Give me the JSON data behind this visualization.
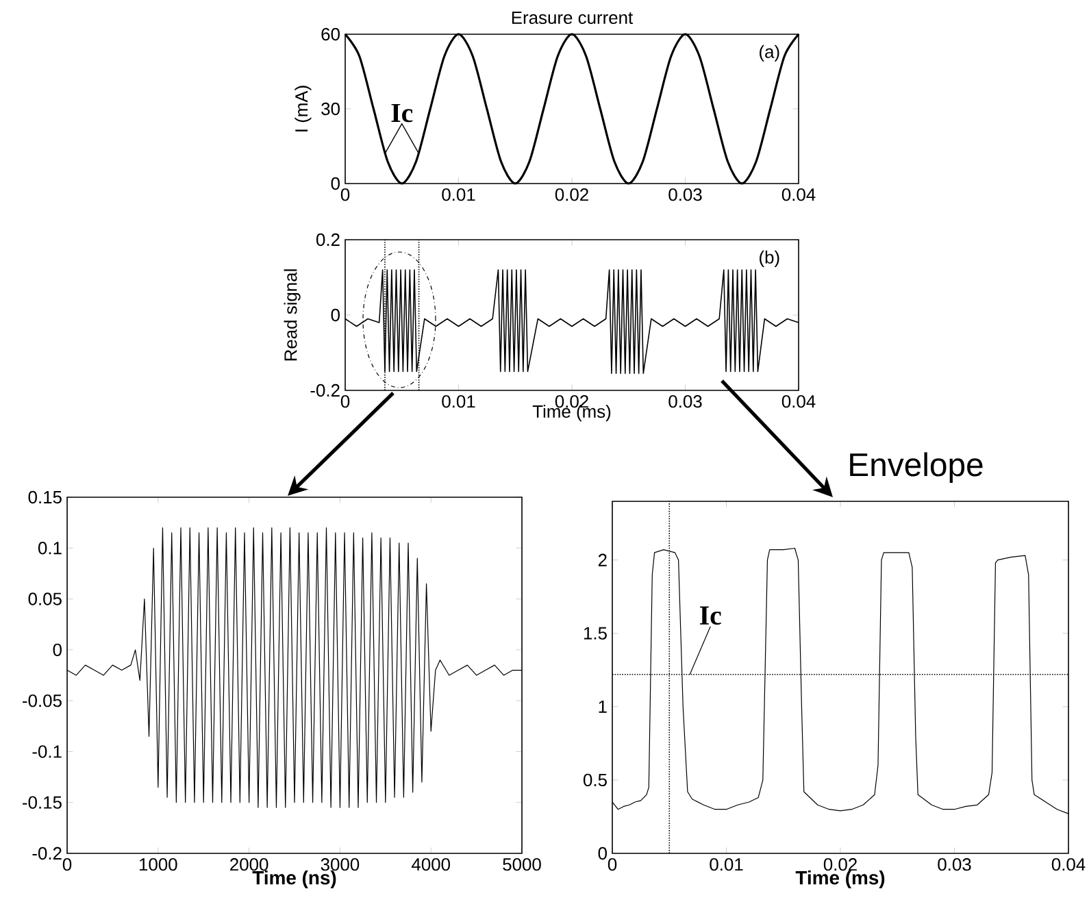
{
  "chart_data": [
    {
      "type": "line",
      "title": "Erasure current",
      "ylabel": "I (mA)",
      "xlim": [
        0,
        0.04
      ],
      "ylim": [
        0,
        60
      ],
      "xticks": [
        0,
        0.01,
        0.02,
        0.03,
        0.04
      ],
      "yticks": [
        0,
        30,
        60
      ],
      "annotations": [
        "Ic",
        "(a)"
      ],
      "x": [
        0,
        0.00125,
        0.0025,
        0.00375,
        0.005,
        0.00625,
        0.0075,
        0.00875,
        0.01,
        0.01125,
        0.0125,
        0.01375,
        0.015,
        0.01625,
        0.0175,
        0.01875,
        0.02,
        0.02125,
        0.0225,
        0.02375,
        0.025,
        0.02625,
        0.0275,
        0.02875,
        0.03,
        0.03125,
        0.0325,
        0.03375,
        0.035,
        0.03625,
        0.0375,
        0.03875,
        0.04
      ],
      "series": [
        {
          "color": "#000000",
          "values": [
            60,
            51.2,
            30,
            8.8,
            0,
            8.8,
            30,
            51.2,
            60,
            51.2,
            30,
            8.8,
            0,
            8.8,
            30,
            51.2,
            60,
            51.2,
            30,
            8.8,
            0,
            8.8,
            30,
            51.2,
            60,
            51.2,
            30,
            8.8,
            0,
            8.8,
            30,
            51.2,
            60
          ]
        }
      ]
    },
    {
      "type": "line",
      "xlabel": "Time (ms)",
      "ylabel": "Read signal",
      "xlim": [
        0,
        0.04
      ],
      "ylim": [
        -0.2,
        0.2
      ],
      "xticks": [
        0,
        0.01,
        0.02,
        0.03,
        0.04
      ],
      "yticks": [
        -0.2,
        0,
        0.2
      ],
      "annotations": [
        "(b)"
      ],
      "ref_lines": [
        {
          "axis": "x",
          "value": 0.0035,
          "line_style": "dotted"
        },
        {
          "axis": "x",
          "value": 0.0065,
          "line_style": "dotted"
        }
      ],
      "x": [
        0,
        0.001,
        0.002,
        0.003,
        0.0033,
        0.0035,
        0.0037,
        0.0039,
        0.0041,
        0.0043,
        0.0045,
        0.0047,
        0.0049,
        0.0051,
        0.0053,
        0.0055,
        0.0057,
        0.0059,
        0.0061,
        0.0063,
        0.007,
        0.008,
        0.009,
        0.01,
        0.011,
        0.012,
        0.013,
        0.0135,
        0.0137,
        0.0139,
        0.0141,
        0.0143,
        0.0145,
        0.0147,
        0.0149,
        0.0151,
        0.0153,
        0.0155,
        0.0157,
        0.0159,
        0.0161,
        0.017,
        0.018,
        0.019,
        0.02,
        0.021,
        0.022,
        0.023,
        0.0233,
        0.0235,
        0.0237,
        0.0239,
        0.0241,
        0.0243,
        0.0245,
        0.0247,
        0.0249,
        0.0251,
        0.0253,
        0.0255,
        0.0257,
        0.0259,
        0.0261,
        0.0263,
        0.027,
        0.028,
        0.029,
        0.03,
        0.031,
        0.032,
        0.033,
        0.0334,
        0.0336,
        0.0338,
        0.034,
        0.0342,
        0.0344,
        0.0346,
        0.0348,
        0.035,
        0.0352,
        0.0354,
        0.0356,
        0.0358,
        0.036,
        0.0362,
        0.0364,
        0.037,
        0.038,
        0.039,
        0.04
      ],
      "series": [
        {
          "color": "#000000",
          "values": [
            -0.01,
            -0.03,
            -0.01,
            -0.02,
            0.12,
            -0.15,
            0.12,
            -0.15,
            0.12,
            -0.15,
            0.12,
            -0.15,
            0.12,
            -0.15,
            0.12,
            -0.15,
            0.12,
            -0.15,
            0.12,
            -0.15,
            -0.01,
            -0.03,
            -0.01,
            -0.03,
            -0.01,
            -0.03,
            -0.01,
            0.12,
            -0.15,
            0.12,
            -0.15,
            0.12,
            -0.15,
            0.12,
            -0.15,
            0.12,
            -0.15,
            0.12,
            -0.15,
            0.12,
            -0.15,
            -0.01,
            -0.03,
            -0.01,
            -0.03,
            -0.01,
            -0.03,
            -0.01,
            0.12,
            -0.155,
            0.12,
            -0.155,
            0.12,
            -0.155,
            0.12,
            -0.155,
            0.12,
            -0.155,
            0.12,
            -0.155,
            0.12,
            -0.155,
            0.12,
            -0.155,
            -0.01,
            -0.03,
            -0.01,
            -0.03,
            -0.01,
            -0.03,
            -0.01,
            0.12,
            -0.15,
            0.12,
            -0.15,
            0.12,
            -0.15,
            0.12,
            -0.15,
            0.12,
            -0.15,
            0.12,
            -0.15,
            0.12,
            -0.15,
            0.12,
            -0.15,
            -0.01,
            -0.03,
            -0.01,
            -0.02
          ]
        }
      ]
    },
    {
      "type": "line",
      "xlabel": "Time (ns)",
      "xlim": [
        0,
        5000
      ],
      "ylim": [
        -0.2,
        0.15
      ],
      "xticks": [
        0,
        1000,
        2000,
        3000,
        4000,
        5000
      ],
      "yticks": [
        -0.2,
        -0.15,
        -0.1,
        -0.05,
        0,
        0.05,
        0.1,
        0.15
      ],
      "x": [
        0,
        100,
        200,
        300,
        400,
        500,
        600,
        700,
        750,
        800,
        850,
        900,
        950,
        1000,
        1050,
        1100,
        1150,
        1200,
        1250,
        1300,
        1350,
        1400,
        1450,
        1500,
        1550,
        1600,
        1650,
        1700,
        1750,
        1800,
        1850,
        1900,
        1950,
        2000,
        2050,
        2100,
        2150,
        2200,
        2250,
        2300,
        2350,
        2400,
        2450,
        2500,
        2550,
        2600,
        2650,
        2700,
        2750,
        2800,
        2850,
        2900,
        2950,
        3000,
        3050,
        3100,
        3150,
        3200,
        3250,
        3300,
        3350,
        3400,
        3450,
        3500,
        3550,
        3600,
        3650,
        3700,
        3750,
        3800,
        3850,
        3900,
        3950,
        4000,
        4050,
        4100,
        4200,
        4300,
        4400,
        4500,
        4600,
        4700,
        4800,
        4900,
        5000
      ],
      "series": [
        {
          "color": "#000000",
          "values": [
            -0.02,
            -0.025,
            -0.015,
            -0.02,
            -0.025,
            -0.015,
            -0.02,
            -0.015,
            0.0,
            -0.03,
            0.05,
            -0.085,
            0.1,
            -0.135,
            0.12,
            -0.145,
            0.115,
            -0.15,
            0.12,
            -0.15,
            0.12,
            -0.15,
            0.115,
            -0.15,
            0.12,
            -0.15,
            0.12,
            -0.15,
            0.115,
            -0.15,
            0.12,
            -0.15,
            0.115,
            -0.15,
            0.12,
            -0.155,
            0.115,
            -0.155,
            0.12,
            -0.155,
            0.115,
            -0.155,
            0.12,
            -0.15,
            0.115,
            -0.15,
            0.115,
            -0.15,
            0.115,
            -0.15,
            0.12,
            -0.155,
            0.115,
            -0.155,
            0.115,
            -0.155,
            0.115,
            -0.155,
            0.11,
            -0.15,
            0.115,
            -0.15,
            0.11,
            -0.15,
            0.11,
            -0.145,
            0.105,
            -0.145,
            0.105,
            -0.14,
            0.09,
            -0.13,
            0.065,
            -0.08,
            -0.02,
            -0.01,
            -0.025,
            -0.02,
            -0.015,
            -0.025,
            -0.02,
            -0.015,
            -0.025,
            -0.02,
            -0.02
          ]
        }
      ]
    },
    {
      "type": "line",
      "title": "Envelope",
      "xlabel": "Time (ms)",
      "xlim": [
        0,
        0.04
      ],
      "ylim": [
        0,
        2.4
      ],
      "xticks": [
        0,
        0.01,
        0.02,
        0.03,
        0.04
      ],
      "yticks": [
        0,
        0.5,
        1,
        1.5,
        2
      ],
      "annotations": [
        {
          "text": "Ic",
          "x": 0.0068,
          "y": 1.22
        }
      ],
      "ref_lines": [
        {
          "axis": "y",
          "value": 1.22,
          "line_style": "dotted"
        },
        {
          "axis": "x",
          "value": 0.005,
          "line_style": "dotted"
        }
      ],
      "x": [
        0,
        0.0005,
        0.001,
        0.0015,
        0.002,
        0.0025,
        0.003,
        0.0032,
        0.0035,
        0.0037,
        0.0045,
        0.0055,
        0.0058,
        0.0062,
        0.0066,
        0.007,
        0.008,
        0.009,
        0.01,
        0.011,
        0.012,
        0.0128,
        0.0132,
        0.0136,
        0.0138,
        0.015,
        0.016,
        0.0163,
        0.0166,
        0.0168,
        0.018,
        0.019,
        0.02,
        0.021,
        0.022,
        0.023,
        0.0233,
        0.0236,
        0.0238,
        0.025,
        0.026,
        0.0263,
        0.0266,
        0.0268,
        0.028,
        0.029,
        0.03,
        0.031,
        0.032,
        0.033,
        0.0333,
        0.0336,
        0.0338,
        0.035,
        0.0362,
        0.0365,
        0.0368,
        0.037,
        0.038,
        0.039,
        0.04
      ],
      "series": [
        {
          "color": "#000000",
          "values": [
            0.35,
            0.3,
            0.32,
            0.33,
            0.35,
            0.36,
            0.4,
            0.45,
            1.9,
            2.05,
            2.07,
            2.05,
            2.0,
            1.0,
            0.42,
            0.37,
            0.33,
            0.3,
            0.3,
            0.33,
            0.35,
            0.38,
            0.5,
            2.0,
            2.07,
            2.07,
            2.08,
            2.0,
            1.0,
            0.42,
            0.33,
            0.3,
            0.29,
            0.3,
            0.33,
            0.4,
            0.6,
            2.0,
            2.05,
            2.05,
            2.05,
            1.95,
            0.8,
            0.4,
            0.33,
            0.3,
            0.3,
            0.32,
            0.33,
            0.4,
            0.55,
            1.98,
            2.0,
            2.02,
            2.03,
            1.9,
            0.5,
            0.4,
            0.35,
            0.3,
            0.27
          ]
        }
      ]
    }
  ]
}
